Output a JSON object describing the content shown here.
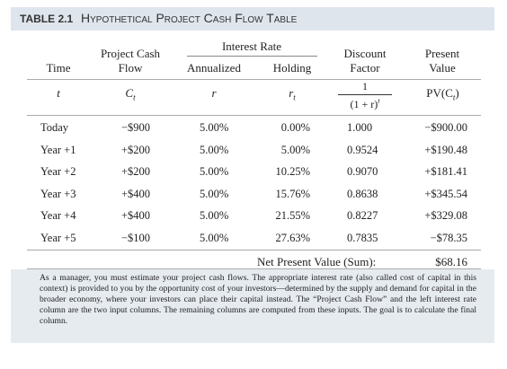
{
  "header": {
    "label": "TABLE 2.1",
    "title": "Hypothetical Project Cash Flow Table"
  },
  "table": {
    "columns": [
      "Time",
      "Project Cash Flow",
      "Annualized",
      "Holding",
      "Discount Factor",
      "Present Value"
    ],
    "group": "Interest Rate",
    "symbols": {
      "time": "t",
      "cash_flow": {
        "main": "C",
        "sub": "t"
      },
      "annualized": "r",
      "holding": {
        "main": "r",
        "sub": "t"
      },
      "discount": {
        "numerator": "1",
        "denominator": "(1 + r)",
        "sup": "t"
      },
      "present_value": {
        "main": "PV(C",
        "sub": "t",
        "close": ")"
      }
    },
    "rows": [
      [
        "Today",
        "−$900",
        "5.00%",
        "0.00%",
        "1.000",
        "−$900.00"
      ],
      [
        "Year +1",
        "+$200",
        "5.00%",
        "5.00%",
        "0.9524",
        "+$190.48"
      ],
      [
        "Year +2",
        "+$200",
        "5.00%",
        "10.25%",
        "0.9070",
        "+$181.41"
      ],
      [
        "Year +3",
        "+$400",
        "5.00%",
        "15.76%",
        "0.8638",
        "+$345.54"
      ],
      [
        "Year +4",
        "+$400",
        "5.00%",
        "21.55%",
        "0.8227",
        "+$329.08"
      ],
      [
        "Year +5",
        "−$100",
        "5.00%",
        "27.63%",
        "0.7835",
        "−$78.35"
      ]
    ],
    "total": {
      "label": "Net Present Value (Sum):",
      "value": "$68.16"
    }
  },
  "caption": "As a manager, you must estimate your project cash flows. The appropriate interest rate (also called cost of capital in this context) is provided to you by the opportunity cost of your investors—determined by the supply and demand for capital in the broader economy, where your investors can place their capital instead. The “Project Cash Flow” and the left interest rate column are the two input columns. The remaining columns are computed from these inputs. The goal is to calculate the final column."
}
